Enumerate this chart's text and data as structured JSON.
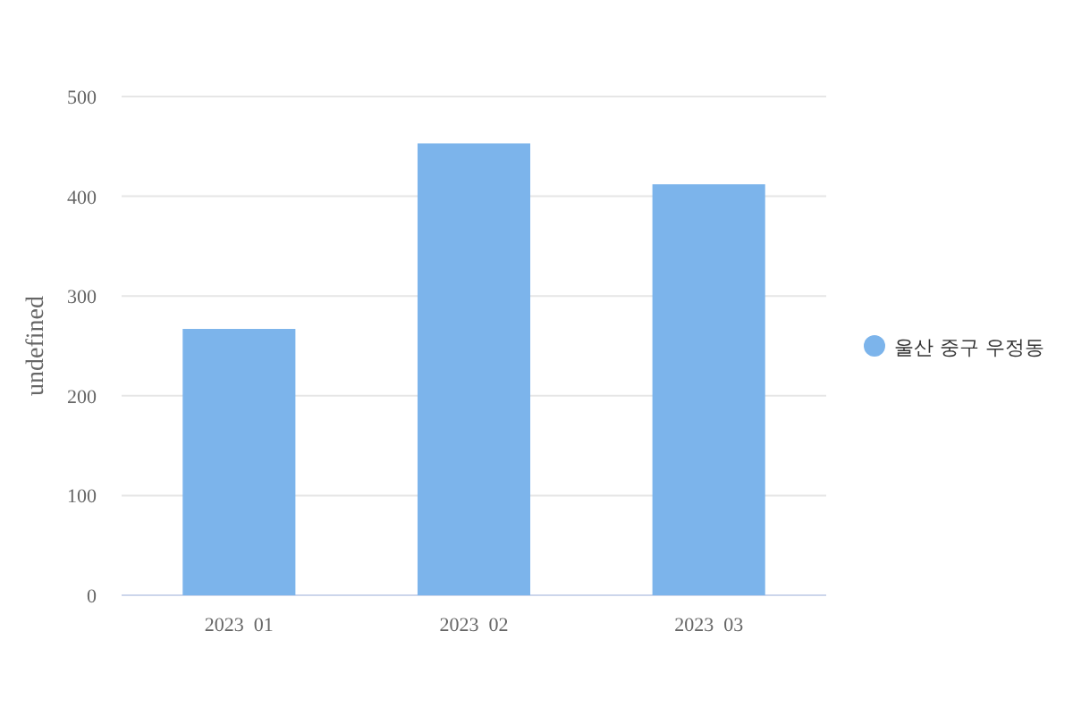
{
  "chart_data": {
    "type": "bar",
    "ylabel": "undefined",
    "categories": [
      "2023  01",
      "2023  02",
      "2023  03"
    ],
    "series": [
      {
        "name": "울산 중구 우정동",
        "color": "#7cb4eb",
        "values": [
          267,
          453,
          412
        ]
      }
    ],
    "ylim": [
      0,
      500
    ],
    "yticks": [
      0,
      100,
      200,
      300,
      400,
      500
    ],
    "grid": "y",
    "legend": "right"
  }
}
